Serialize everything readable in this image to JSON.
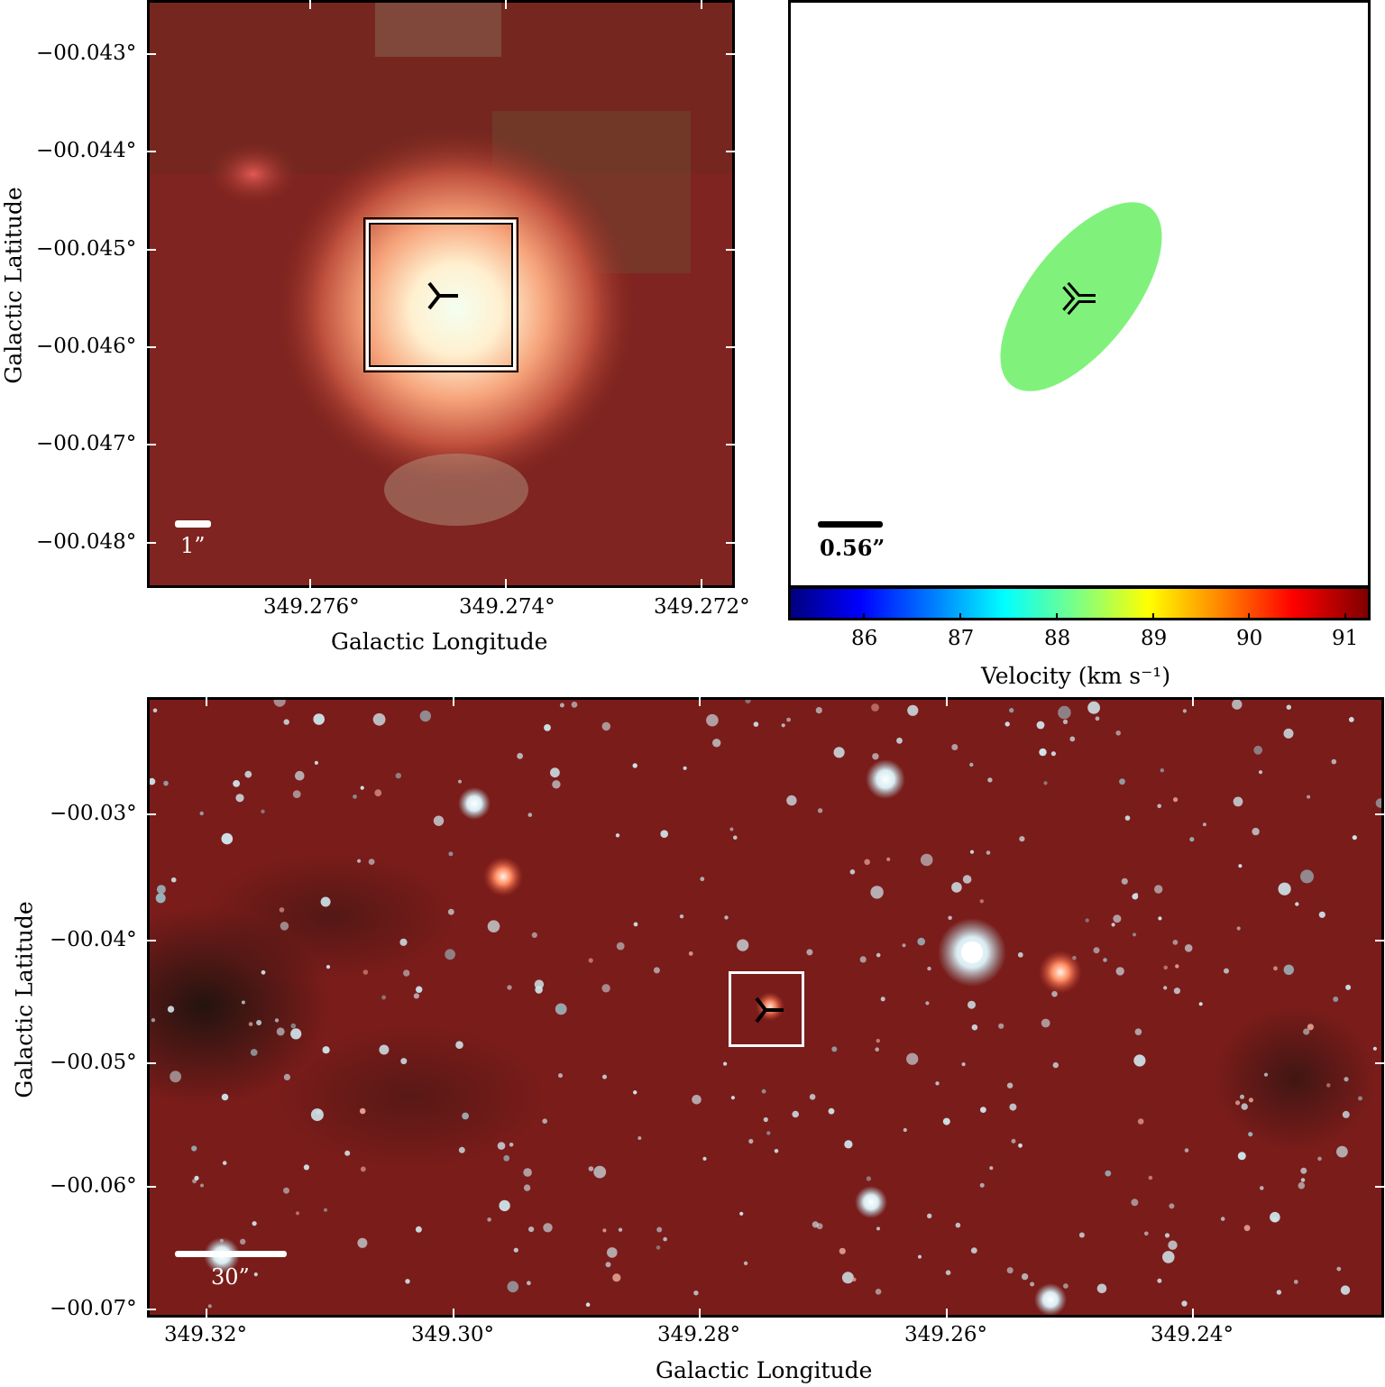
{
  "top_left": {
    "ylabel": "Galactic Latitude",
    "xlabel": "Galactic Longitude",
    "yticks": [
      "−00.043°",
      "−00.044°",
      "−00.045°",
      "−00.046°",
      "−00.047°",
      "−00.048°"
    ],
    "xticks": [
      "349.276°",
      "349.274°",
      "349.272°"
    ],
    "scalebar": "1”"
  },
  "top_right": {
    "scalebar": "0.56”",
    "ellipse_color": "#80f27c",
    "colorbar": {
      "ticks": [
        "86",
        "87",
        "88",
        "89",
        "90",
        "91"
      ],
      "label": "Velocity (km s⁻¹)",
      "colormap": "jet"
    }
  },
  "bottom": {
    "ylabel": "Galactic Latitude",
    "xlabel": "Galactic Longitude",
    "yticks": [
      "−00.03°",
      "−00.04°",
      "−00.05°",
      "−00.06°",
      "−00.07°"
    ],
    "xticks": [
      "349.32°",
      "349.30°",
      "349.28°",
      "349.26°",
      "349.24°"
    ],
    "scalebar": "30”"
  }
}
